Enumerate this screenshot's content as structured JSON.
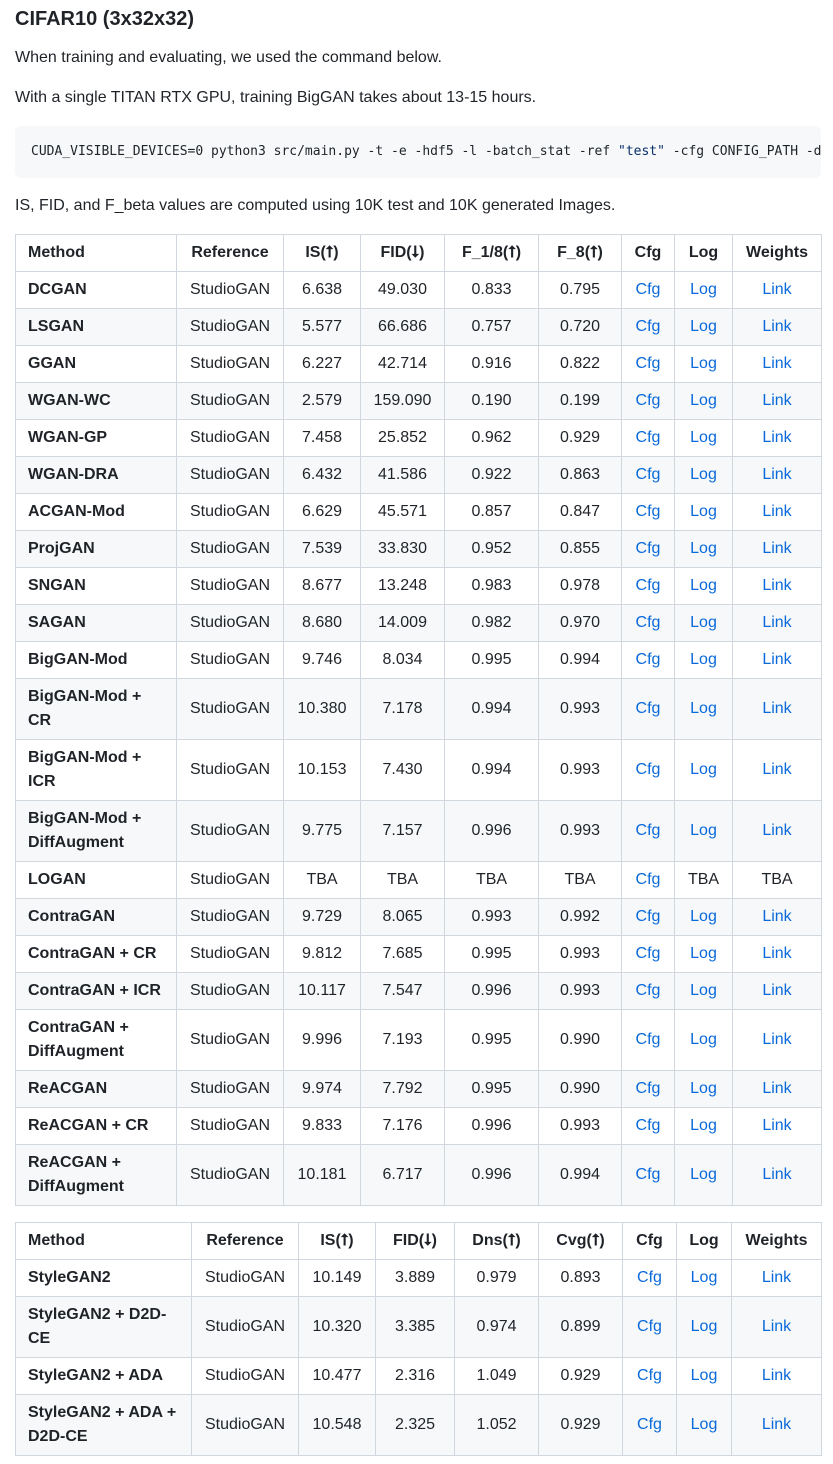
{
  "heading": "CIFAR10 (3x32x32)",
  "intro1": "When training and evaluating, we used the command below.",
  "intro2": "With a single TITAN RTX GPU, training BigGAN takes about 13-15 hours.",
  "command": {
    "prefix": "CUDA_VISIBLE_DEVICES=0 python3 src/main.py -t -e -hdf5 -l -batch_stat -ref ",
    "string": "\"test\"",
    "suffix": " -cfg CONFIG_PATH -data DATA_PATH -save SAVE_PATH"
  },
  "note": "IS, FID, and F_beta values are computed using 10K test and 10K generated Images.",
  "table1": {
    "headers": [
      "Method",
      "Reference",
      "IS(⭡)",
      "FID(⭣)",
      "F_1/8(⭡)",
      "F_8(⭡)",
      "Cfg",
      "Log",
      "Weights"
    ],
    "rows": [
      [
        "DCGAN",
        "StudioGAN",
        "6.638",
        "49.030",
        "0.833",
        "0.795",
        "Cfg",
        "Log",
        "Link"
      ],
      [
        "LSGAN",
        "StudioGAN",
        "5.577",
        "66.686",
        "0.757",
        "0.720",
        "Cfg",
        "Log",
        "Link"
      ],
      [
        "GGAN",
        "StudioGAN",
        "6.227",
        "42.714",
        "0.916",
        "0.822",
        "Cfg",
        "Log",
        "Link"
      ],
      [
        "WGAN-WC",
        "StudioGAN",
        "2.579",
        "159.090",
        "0.190",
        "0.199",
        "Cfg",
        "Log",
        "Link"
      ],
      [
        "WGAN-GP",
        "StudioGAN",
        "7.458",
        "25.852",
        "0.962",
        "0.929",
        "Cfg",
        "Log",
        "Link"
      ],
      [
        "WGAN-DRA",
        "StudioGAN",
        "6.432",
        "41.586",
        "0.922",
        "0.863",
        "Cfg",
        "Log",
        "Link"
      ],
      [
        "ACGAN-Mod",
        "StudioGAN",
        "6.629",
        "45.571",
        "0.857",
        "0.847",
        "Cfg",
        "Log",
        "Link"
      ],
      [
        "ProjGAN",
        "StudioGAN",
        "7.539",
        "33.830",
        "0.952",
        "0.855",
        "Cfg",
        "Log",
        "Link"
      ],
      [
        "SNGAN",
        "StudioGAN",
        "8.677",
        "13.248",
        "0.983",
        "0.978",
        "Cfg",
        "Log",
        "Link"
      ],
      [
        "SAGAN",
        "StudioGAN",
        "8.680",
        "14.009",
        "0.982",
        "0.970",
        "Cfg",
        "Log",
        "Link"
      ],
      [
        "BigGAN-Mod",
        "StudioGAN",
        "9.746",
        "8.034",
        "0.995",
        "0.994",
        "Cfg",
        "Log",
        "Link"
      ],
      [
        "BigGAN-Mod + CR",
        "StudioGAN",
        "10.380",
        "7.178",
        "0.994",
        "0.993",
        "Cfg",
        "Log",
        "Link"
      ],
      [
        "BigGAN-Mod + ICR",
        "StudioGAN",
        "10.153",
        "7.430",
        "0.994",
        "0.993",
        "Cfg",
        "Log",
        "Link"
      ],
      [
        "BigGAN-Mod + DiffAugment",
        "StudioGAN",
        "9.775",
        "7.157",
        "0.996",
        "0.993",
        "Cfg",
        "Log",
        "Link"
      ],
      [
        "LOGAN",
        "StudioGAN",
        "TBA",
        "TBA",
        "TBA",
        "TBA",
        "Cfg",
        "TBA",
        "TBA"
      ],
      [
        "ContraGAN",
        "StudioGAN",
        "9.729",
        "8.065",
        "0.993",
        "0.992",
        "Cfg",
        "Log",
        "Link"
      ],
      [
        "ContraGAN + CR",
        "StudioGAN",
        "9.812",
        "7.685",
        "0.995",
        "0.993",
        "Cfg",
        "Log",
        "Link"
      ],
      [
        "ContraGAN + ICR",
        "StudioGAN",
        "10.117",
        "7.547",
        "0.996",
        "0.993",
        "Cfg",
        "Log",
        "Link"
      ],
      [
        "ContraGAN + DiffAugment",
        "StudioGAN",
        "9.996",
        "7.193",
        "0.995",
        "0.990",
        "Cfg",
        "Log",
        "Link"
      ],
      [
        "ReACGAN",
        "StudioGAN",
        "9.974",
        "7.792",
        "0.995",
        "0.990",
        "Cfg",
        "Log",
        "Link"
      ],
      [
        "ReACGAN + CR",
        "StudioGAN",
        "9.833",
        "7.176",
        "0.996",
        "0.993",
        "Cfg",
        "Log",
        "Link"
      ],
      [
        "ReACGAN + DiffAugment",
        "StudioGAN",
        "10.181",
        "6.717",
        "0.996",
        "0.994",
        "Cfg",
        "Log",
        "Link"
      ]
    ]
  },
  "table2": {
    "headers": [
      "Method",
      "Reference",
      "IS(⭡)",
      "FID(⭣)",
      "Dns(⭡)",
      "Cvg(⭡)",
      "Cfg",
      "Log",
      "Weights"
    ],
    "rows": [
      [
        "StyleGAN2",
        "StudioGAN",
        "10.149",
        "3.889",
        "0.979",
        "0.893",
        "Cfg",
        "Log",
        "Link"
      ],
      [
        "StyleGAN2 + D2D-CE",
        "StudioGAN",
        "10.320",
        "3.385",
        "0.974",
        "0.899",
        "Cfg",
        "Log",
        "Link"
      ],
      [
        "StyleGAN2 + ADA",
        "StudioGAN",
        "10.477",
        "2.316",
        "1.049",
        "0.929",
        "Cfg",
        "Log",
        "Link"
      ],
      [
        "StyleGAN2 + ADA + D2D-CE",
        "StudioGAN",
        "10.548",
        "2.325",
        "1.052",
        "0.929",
        "Cfg",
        "Log",
        "Link"
      ]
    ]
  }
}
